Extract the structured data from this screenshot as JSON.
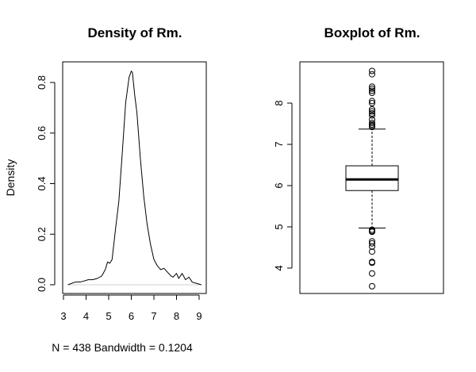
{
  "chart_data": [
    {
      "type": "line",
      "title": "Density of Rm.",
      "xlabel": "N = 438   Bandwidth = 0.1204",
      "ylabel": "Density",
      "xlim": [
        3,
        9
      ],
      "ylim": [
        0,
        0.8
      ],
      "x_ticks": [
        "3",
        "4",
        "5",
        "6",
        "7",
        "8",
        "9"
      ],
      "y_ticks": [
        "0.0",
        "0.2",
        "0.4",
        "0.6",
        "0.8"
      ],
      "series": [
        {
          "x": [
            3.2,
            3.5,
            3.8,
            4.1,
            4.3,
            4.5,
            4.7,
            4.85,
            4.95,
            5.05,
            5.15,
            5.3,
            5.45,
            5.6,
            5.75,
            5.9,
            6.0,
            6.05,
            6.15,
            6.25,
            6.4,
            6.55,
            6.7,
            6.85,
            7.0,
            7.15,
            7.3,
            7.45,
            7.6,
            7.75,
            7.85,
            8.0,
            8.1,
            8.25,
            8.4,
            8.55,
            8.7,
            8.9,
            9.1
          ],
          "y": [
            0.0,
            0.01,
            0.012,
            0.02,
            0.02,
            0.025,
            0.035,
            0.06,
            0.09,
            0.085,
            0.1,
            0.22,
            0.33,
            0.52,
            0.72,
            0.82,
            0.845,
            0.84,
            0.75,
            0.68,
            0.5,
            0.35,
            0.24,
            0.16,
            0.1,
            0.075,
            0.06,
            0.065,
            0.05,
            0.035,
            0.03,
            0.045,
            0.025,
            0.045,
            0.02,
            0.03,
            0.01,
            0.005,
            0.0
          ]
        }
      ]
    },
    {
      "type": "boxplot",
      "title": "Boxplot of Rm.",
      "ylim": [
        3.5,
        9
      ],
      "y_ticks": [
        "4",
        "5",
        "6",
        "7",
        "8"
      ],
      "box": {
        "q1": 5.88,
        "median": 6.15,
        "q3": 6.48,
        "whisker_low": 4.97,
        "whisker_high": 7.37
      },
      "outliers": [
        8.78,
        8.7,
        8.4,
        8.35,
        8.3,
        8.25,
        8.05,
        8.0,
        7.85,
        7.8,
        7.75,
        7.7,
        7.6,
        7.52,
        7.48,
        7.45,
        7.42,
        4.93,
        4.9,
        4.88,
        4.65,
        4.6,
        4.52,
        4.4,
        4.15,
        4.13,
        3.87,
        3.56
      ]
    }
  ]
}
